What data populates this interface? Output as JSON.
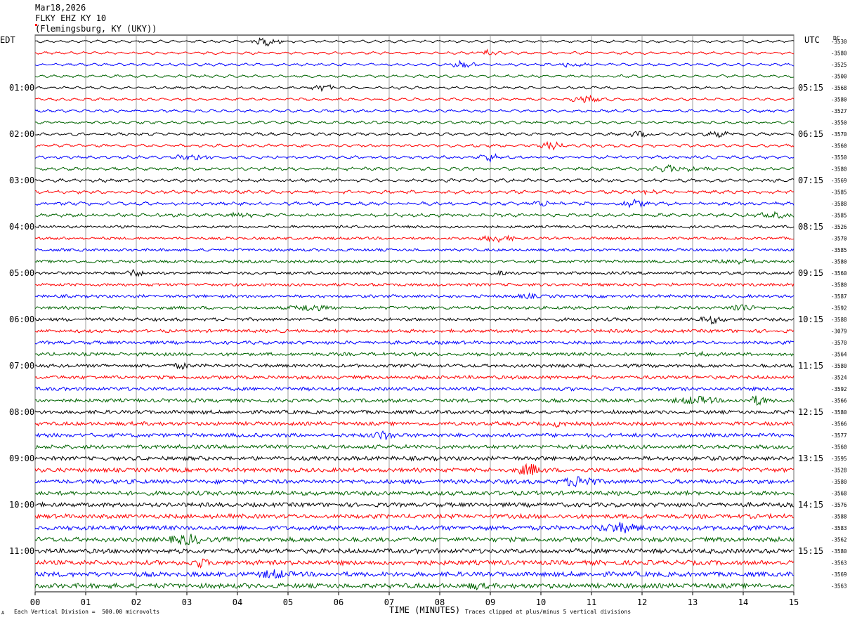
{
  "header": {
    "date": "Mar18,2026",
    "station": "FLKY EHZ KY 10",
    "location": "(Flemingsburg, KY (UKY))"
  },
  "left_timezone": "EDT",
  "right_timezone": "UTC",
  "dc_label": "DC",
  "footer": {
    "left_text": "Each Vertical Division =  500.00 microvolts",
    "center_text": "TIME (MINUTES)",
    "right_text": "Traces clipped at plus/minus 5 vertical divisions",
    "corner_mark": "A"
  },
  "colors": [
    "#000000",
    "#ff0000",
    "#0000ff",
    "#006400"
  ],
  "chart_data": {
    "type": "line",
    "title": "FLKY EHZ KY 10",
    "xlabel": "TIME (MINUTES)",
    "x_ticks": [
      "00",
      "01",
      "02",
      "03",
      "04",
      "05",
      "06",
      "07",
      "08",
      "09",
      "10",
      "11",
      "12",
      "13",
      "14",
      "15"
    ],
    "xlim": [
      0,
      15
    ],
    "grid": true,
    "left_hour_labels": [
      "01:00",
      "02:00",
      "03:00",
      "04:00",
      "05:00",
      "06:00",
      "07:00",
      "08:00",
      "09:00",
      "10:00",
      "11:00"
    ],
    "right_hour_labels": [
      "05:15",
      "06:15",
      "07:15",
      "08:15",
      "09:15",
      "10:15",
      "11:15",
      "12:15",
      "13:15",
      "14:15",
      "15:15"
    ],
    "dc_offsets": [
      "-3530",
      "-3580",
      "-3525",
      "-3500",
      "-3568",
      "-3580",
      "-3527",
      "-3550",
      "-3570",
      "-3560",
      "-3550",
      "-3580",
      "-3569",
      "-3585",
      "-3588",
      "-3585",
      "-3526",
      "-3570",
      "-3585",
      "-3580",
      "-3560",
      "-3580",
      "-3587",
      "-3592",
      "-3588",
      "-3079",
      "-3570",
      "-3564",
      "-3580",
      "-3524",
      "-3592",
      "-3566",
      "-3580",
      "-3566",
      "-3577",
      "-3560",
      "-3595",
      "-3528",
      "-3580",
      "-3568",
      "-3576",
      "-3588",
      "-3583",
      "-3562",
      "-3580",
      "-3563",
      "-3569",
      "-3563"
    ],
    "trace_count": 48,
    "traces_per_hour": 4,
    "trace_interval_minutes": 15
  }
}
